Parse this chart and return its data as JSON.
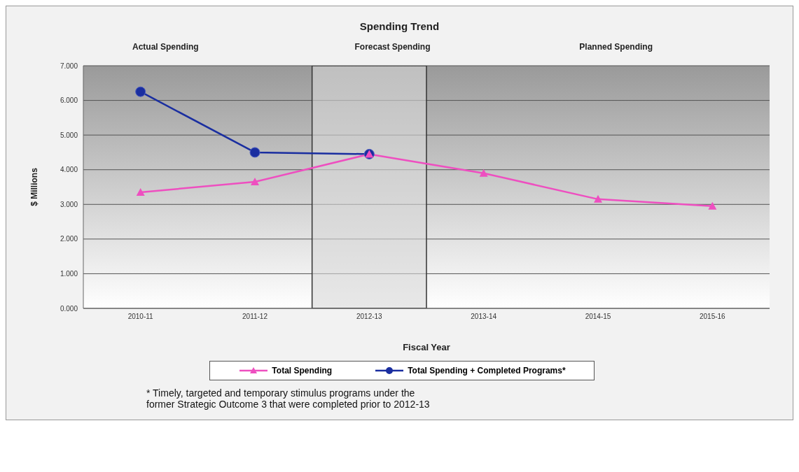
{
  "chart_data": {
    "type": "line",
    "title": "Spending Trend",
    "xlabel": "Fiscal Year",
    "ylabel": "$ Millions",
    "categories": [
      "2010-11",
      "2011-12",
      "2012-13",
      "2013-14",
      "2014-15",
      "2015-16"
    ],
    "series": [
      {
        "name": "Total Spending",
        "color": "#ee4fc0",
        "marker": "triangle",
        "values": [
          3.35,
          3.65,
          4.45,
          3.9,
          3.15,
          2.95
        ]
      },
      {
        "name": "Total Spending + Completed Programs*",
        "color": "#1a2ea0",
        "marker": "circle",
        "values": [
          6.25,
          4.5,
          4.45,
          null,
          null,
          null
        ]
      }
    ],
    "ylim": [
      0,
      7
    ],
    "yticks": [
      {
        "value": 0,
        "label": "0.000"
      },
      {
        "value": 1,
        "label": "1.000"
      },
      {
        "value": 2,
        "label": "2.000"
      },
      {
        "value": 3,
        "label": "3.000"
      },
      {
        "value": 4,
        "label": "4.000"
      },
      {
        "value": 5,
        "label": "5.000"
      },
      {
        "value": 6,
        "label": "6.000"
      },
      {
        "value": 7,
        "label": "7.000"
      }
    ],
    "grid": "y",
    "legend": "bottom",
    "bands": [
      {
        "axis": "x",
        "from": "2012-13",
        "to": "2012-13",
        "color": "#d8d8d8"
      }
    ],
    "annotations": [
      "Actual Spending",
      "Forecast Spending",
      "Planned Spending",
      "* Timely, targeted and temporary stimulus programs under the former Strategic Outcome 3 that were completed prior to 2012-13"
    ]
  }
}
